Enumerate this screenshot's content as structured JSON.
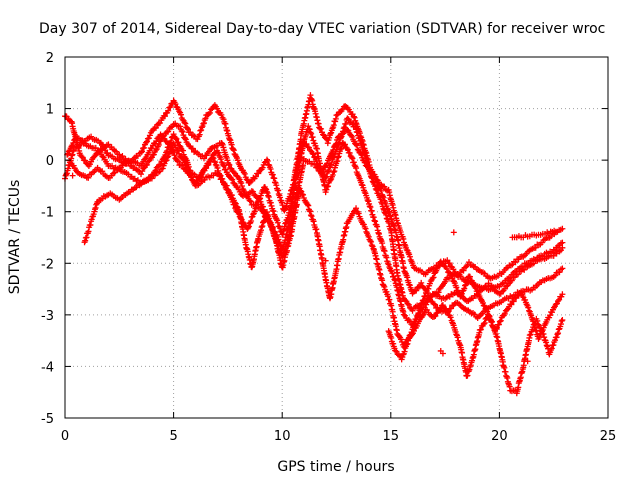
{
  "chart_data": {
    "type": "scatter",
    "title": "Day 307 of 2014, Sidereal Day-to-day VTEC variation (SDTVAR) for receiver wroc",
    "xlabel": "GPS time / hours",
    "ylabel": "SDTVAR / TECUs",
    "xlim": [
      0,
      25
    ],
    "ylim": [
      -5,
      2
    ],
    "xticks": [
      0,
      5,
      10,
      15,
      20,
      25
    ],
    "yticks": [
      -5,
      -4,
      -3,
      -2,
      -1,
      0,
      1,
      2
    ],
    "grid": true,
    "legend": "none",
    "marker": "plus",
    "color": "#ff0000",
    "traces": [
      [
        [
          0.0,
          -0.35
        ],
        [
          0.4,
          0.2
        ],
        [
          0.8,
          0.35
        ],
        [
          1.2,
          0.45
        ],
        [
          1.6,
          0.35
        ],
        [
          2.0,
          0.1
        ],
        [
          2.5,
          0.0
        ],
        [
          3.0,
          -0.1
        ],
        [
          3.5,
          -0.25
        ],
        [
          4.0,
          0.05
        ],
        [
          4.5,
          0.45
        ],
        [
          5.0,
          0.7
        ],
        [
          5.3,
          0.65
        ],
        [
          5.6,
          0.35
        ],
        [
          6.0,
          0.15
        ],
        [
          6.4,
          0.05
        ],
        [
          6.8,
          0.25
        ],
        [
          7.2,
          0.35
        ],
        [
          7.6,
          -0.15
        ],
        [
          8.0,
          -0.35
        ],
        [
          8.3,
          -0.65
        ],
        [
          8.6,
          -0.85
        ],
        [
          9.0,
          -0.95
        ],
        [
          9.4,
          -1.2
        ],
        [
          9.8,
          -1.5
        ],
        [
          10.0,
          -1.75
        ],
        [
          10.3,
          -1.3
        ],
        [
          10.6,
          -0.4
        ],
        [
          11.0,
          0.35
        ],
        [
          11.4,
          0.15
        ],
        [
          11.8,
          -0.25
        ],
        [
          12.2,
          0.05
        ],
        [
          12.6,
          0.45
        ],
        [
          13.0,
          0.6
        ],
        [
          13.4,
          0.3
        ],
        [
          13.8,
          -0.05
        ],
        [
          14.2,
          -0.3
        ],
        [
          14.6,
          -0.65
        ],
        [
          15.0,
          -1.1
        ],
        [
          15.3,
          -1.5
        ],
        [
          15.6,
          -2.1
        ],
        [
          16.0,
          -2.6
        ],
        [
          16.4,
          -2.4
        ],
        [
          16.8,
          -2.65
        ],
        [
          17.2,
          -2.55
        ],
        [
          17.6,
          -2.3
        ],
        [
          18.0,
          -2.2
        ],
        [
          18.5,
          -2.35
        ],
        [
          19.0,
          -2.45
        ],
        [
          19.5,
          -2.5
        ],
        [
          20.0,
          -2.45
        ],
        [
          20.5,
          -2.25
        ],
        [
          21.0,
          -2.05
        ],
        [
          21.5,
          -1.95
        ],
        [
          22.0,
          -1.85
        ],
        [
          22.5,
          -1.75
        ],
        [
          22.9,
          -1.6
        ]
      ],
      [
        [
          0.1,
          0.1
        ],
        [
          0.5,
          0.45
        ],
        [
          1.0,
          0.3
        ],
        [
          1.5,
          0.2
        ],
        [
          2.0,
          -0.1
        ],
        [
          2.5,
          -0.2
        ],
        [
          3.0,
          -0.3
        ],
        [
          3.5,
          -0.45
        ],
        [
          4.0,
          -0.3
        ],
        [
          4.5,
          0.0
        ],
        [
          5.0,
          0.5
        ],
        [
          5.4,
          0.2
        ],
        [
          5.8,
          -0.25
        ],
        [
          6.2,
          -0.35
        ],
        [
          6.6,
          -0.05
        ],
        [
          7.0,
          0.2
        ],
        [
          7.4,
          -0.2
        ],
        [
          7.8,
          -0.45
        ],
        [
          8.2,
          -0.7
        ],
        [
          8.6,
          -0.6
        ],
        [
          9.0,
          -0.8
        ],
        [
          9.5,
          -1.3
        ],
        [
          10.0,
          -1.9
        ],
        [
          10.3,
          -1.5
        ],
        [
          10.6,
          -0.8
        ],
        [
          11.0,
          0.0
        ],
        [
          11.5,
          -0.1
        ],
        [
          12.0,
          -0.35
        ],
        [
          12.5,
          0.2
        ],
        [
          13.0,
          0.8
        ],
        [
          13.4,
          0.6
        ],
        [
          13.8,
          0.1
        ],
        [
          14.2,
          -0.45
        ],
        [
          14.6,
          -0.85
        ],
        [
          15.0,
          -1.35
        ],
        [
          15.3,
          -2.2
        ],
        [
          15.6,
          -2.7
        ],
        [
          16.0,
          -2.9
        ],
        [
          16.5,
          -2.75
        ],
        [
          17.0,
          -2.6
        ],
        [
          17.5,
          -2.7
        ],
        [
          18.0,
          -2.55
        ],
        [
          18.5,
          -2.75
        ],
        [
          19.0,
          -2.6
        ],
        [
          19.5,
          -2.4
        ],
        [
          20.0,
          -2.6
        ],
        [
          20.5,
          -2.35
        ],
        [
          21.0,
          -2.15
        ],
        [
          21.5,
          -2.0
        ],
        [
          22.0,
          -1.9
        ],
        [
          22.5,
          -1.85
        ],
        [
          22.9,
          -1.7
        ]
      ],
      [
        [
          0.2,
          0.0
        ],
        [
          0.6,
          -0.25
        ],
        [
          1.0,
          -0.35
        ],
        [
          1.5,
          -0.15
        ],
        [
          2.0,
          -0.35
        ],
        [
          2.5,
          -0.15
        ],
        [
          3.0,
          0.0
        ],
        [
          3.5,
          -0.1
        ],
        [
          4.0,
          0.25
        ],
        [
          4.4,
          0.5
        ],
        [
          4.8,
          0.3
        ],
        [
          5.2,
          -0.05
        ],
        [
          5.6,
          -0.2
        ],
        [
          6.0,
          -0.45
        ],
        [
          6.4,
          -0.2
        ],
        [
          6.8,
          0.05
        ],
        [
          7.2,
          -0.35
        ],
        [
          7.6,
          -0.7
        ],
        [
          8.0,
          -1.05
        ],
        [
          8.4,
          -1.35
        ],
        [
          8.8,
          -0.9
        ],
        [
          9.2,
          -0.5
        ],
        [
          9.6,
          -1.0
        ],
        [
          10.0,
          -1.45
        ],
        [
          10.4,
          -0.9
        ],
        [
          10.8,
          0.1
        ],
        [
          11.2,
          0.65
        ],
        [
          11.6,
          0.2
        ],
        [
          12.0,
          -0.6
        ],
        [
          12.4,
          -0.2
        ],
        [
          12.8,
          0.35
        ],
        [
          13.2,
          0.05
        ],
        [
          13.6,
          -0.4
        ],
        [
          14.0,
          -0.85
        ],
        [
          14.4,
          -1.35
        ],
        [
          14.8,
          -1.9
        ],
        [
          15.2,
          -2.35
        ],
        [
          15.6,
          -3.0
        ],
        [
          16.0,
          -3.2
        ],
        [
          16.4,
          -2.9
        ],
        [
          16.8,
          -2.7
        ],
        [
          17.2,
          -2.9
        ],
        [
          17.6,
          -2.95
        ],
        [
          18.0,
          -2.75
        ],
        [
          18.5,
          -2.9
        ],
        [
          19.0,
          -3.05
        ],
        [
          19.5,
          -2.85
        ],
        [
          20.0,
          -2.75
        ],
        [
          20.5,
          -2.65
        ],
        [
          21.0,
          -2.55
        ],
        [
          21.5,
          -2.5
        ],
        [
          22.0,
          -2.35
        ],
        [
          22.5,
          -2.25
        ],
        [
          22.9,
          -2.1
        ]
      ],
      [
        [
          0.0,
          0.85
        ],
        [
          0.3,
          0.75
        ],
        [
          0.7,
          0.1
        ],
        [
          1.1,
          -0.1
        ],
        [
          1.5,
          0.15
        ],
        [
          2.0,
          0.3
        ],
        [
          2.5,
          0.1
        ],
        [
          3.0,
          -0.05
        ],
        [
          3.5,
          0.15
        ],
        [
          4.0,
          0.55
        ],
        [
          4.5,
          0.8
        ],
        [
          5.0,
          1.15
        ],
        [
          5.3,
          0.9
        ],
        [
          5.7,
          0.55
        ],
        [
          6.1,
          0.4
        ],
        [
          6.5,
          0.85
        ],
        [
          6.9,
          1.05
        ],
        [
          7.3,
          0.8
        ],
        [
          7.7,
          0.25
        ],
        [
          8.1,
          -0.15
        ],
        [
          8.5,
          -0.45
        ],
        [
          8.9,
          -0.25
        ],
        [
          9.3,
          0.0
        ],
        [
          9.7,
          -0.45
        ],
        [
          10.1,
          -1.0
        ],
        [
          10.5,
          -0.5
        ],
        [
          10.9,
          0.55
        ],
        [
          11.3,
          1.25
        ],
        [
          11.7,
          0.65
        ],
        [
          12.1,
          0.35
        ],
        [
          12.5,
          0.85
        ],
        [
          12.9,
          1.05
        ],
        [
          13.3,
          0.85
        ],
        [
          13.7,
          0.35
        ],
        [
          14.1,
          -0.2
        ],
        [
          14.5,
          -0.45
        ],
        [
          14.9,
          -0.6
        ],
        [
          15.3,
          -1.2
        ],
        [
          15.7,
          -1.7
        ],
        [
          16.1,
          -2.1
        ],
        [
          16.6,
          -2.2
        ],
        [
          17.1,
          -2.05
        ],
        [
          17.6,
          -1.95
        ],
        [
          18.1,
          -2.25
        ],
        [
          18.6,
          -2.0
        ],
        [
          19.1,
          -2.15
        ],
        [
          19.6,
          -2.3
        ],
        [
          20.1,
          -2.2
        ],
        [
          20.6,
          -2.0
        ],
        [
          21.1,
          -1.85
        ],
        [
          21.6,
          -1.7
        ],
        [
          22.1,
          -1.55
        ],
        [
          22.6,
          -1.4
        ]
      ],
      [
        [
          0.9,
          -1.6
        ],
        [
          1.2,
          -1.2
        ],
        [
          1.5,
          -0.8
        ],
        [
          2.0,
          -0.65
        ],
        [
          2.5,
          -0.75
        ],
        [
          3.0,
          -0.6
        ],
        [
          3.5,
          -0.45
        ],
        [
          4.0,
          -0.35
        ],
        [
          4.5,
          -0.15
        ],
        [
          5.0,
          0.3
        ],
        [
          5.5,
          -0.05
        ],
        [
          6.0,
          -0.5
        ],
        [
          6.5,
          -0.35
        ],
        [
          7.0,
          -0.25
        ],
        [
          7.5,
          -0.55
        ],
        [
          8.0,
          -0.95
        ],
        [
          8.3,
          -1.6
        ],
        [
          8.6,
          -2.1
        ],
        [
          8.9,
          -1.5
        ],
        [
          9.3,
          -1.0
        ],
        [
          9.7,
          -1.55
        ],
        [
          10.0,
          -2.1
        ],
        [
          10.4,
          -1.45
        ],
        [
          10.8,
          -0.55
        ],
        [
          11.2,
          -0.9
        ],
        [
          11.6,
          -1.4
        ],
        [
          12.0,
          -2.3
        ],
        [
          12.2,
          -2.7
        ],
        [
          12.6,
          -1.9
        ],
        [
          13.0,
          -1.2
        ],
        [
          13.4,
          -0.95
        ],
        [
          13.8,
          -1.3
        ],
        [
          14.2,
          -1.7
        ],
        [
          14.6,
          -2.35
        ],
        [
          15.0,
          -2.8
        ],
        [
          15.3,
          -3.35
        ],
        [
          15.6,
          -3.6
        ],
        [
          16.0,
          -3.3
        ],
        [
          16.4,
          -2.8
        ],
        [
          16.8,
          -2.4
        ],
        [
          17.3,
          -1.95
        ],
        [
          17.8,
          -2.25
        ],
        [
          18.2,
          -2.65
        ],
        [
          18.6,
          -2.25
        ],
        [
          19.0,
          -2.55
        ],
        [
          19.4,
          -2.9
        ],
        [
          19.8,
          -3.3
        ],
        [
          20.2,
          -3.0
        ],
        [
          20.6,
          -2.75
        ],
        [
          21.0,
          -2.55
        ],
        [
          21.4,
          -2.95
        ],
        [
          21.8,
          -3.45
        ],
        [
          22.2,
          -3.1
        ],
        [
          22.6,
          -2.8
        ],
        [
          22.9,
          -2.6
        ]
      ],
      [
        [
          14.9,
          -3.3
        ],
        [
          15.2,
          -3.7
        ],
        [
          15.5,
          -3.85
        ],
        [
          15.8,
          -3.5
        ],
        [
          16.2,
          -3.2
        ],
        [
          16.6,
          -2.9
        ],
        [
          17.0,
          -3.05
        ],
        [
          17.4,
          -2.8
        ],
        [
          17.8,
          -3.1
        ],
        [
          18.2,
          -3.6
        ],
        [
          18.5,
          -4.2
        ],
        [
          18.8,
          -3.8
        ],
        [
          19.1,
          -3.3
        ],
        [
          19.5,
          -3.0
        ],
        [
          19.9,
          -3.45
        ],
        [
          20.2,
          -4.0
        ],
        [
          20.5,
          -4.45
        ],
        [
          20.8,
          -4.5
        ],
        [
          21.1,
          -4.0
        ],
        [
          21.4,
          -3.4
        ],
        [
          21.7,
          -3.1
        ],
        [
          22.0,
          -3.35
        ],
        [
          22.3,
          -3.75
        ],
        [
          22.6,
          -3.45
        ],
        [
          22.9,
          -3.1
        ]
      ],
      [
        [
          20.6,
          -1.5
        ],
        [
          21.0,
          -1.48
        ],
        [
          21.4,
          -1.46
        ],
        [
          21.8,
          -1.44
        ],
        [
          22.2,
          -1.42
        ],
        [
          22.6,
          -1.38
        ],
        [
          22.9,
          -1.33
        ]
      ],
      [
        [
          0.05,
          0.85
        ],
        [
          0.15,
          0.8
        ],
        [
          0.35,
          -0.3
        ],
        [
          7.95,
          -1.0
        ],
        [
          12.0,
          -1.95
        ],
        [
          17.3,
          -3.7
        ],
        [
          17.4,
          -3.75
        ],
        [
          17.9,
          -1.4
        ],
        [
          21.3,
          -3.9
        ]
      ]
    ]
  }
}
